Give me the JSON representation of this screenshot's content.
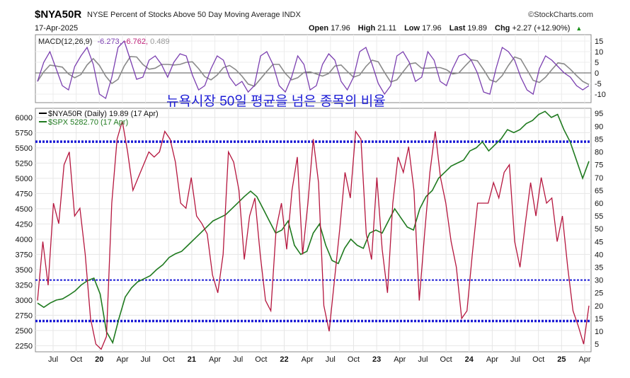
{
  "header": {
    "symbol": "$NYA50R",
    "description": "NYSE Percent of Stocks Above 50 Day Moving Average INDX",
    "brand": "©StockCharts.com",
    "date": "17-Apr-2025",
    "open_label": "Open",
    "open": "17.96",
    "high_label": "High",
    "high": "21.11",
    "low_label": "Low",
    "low": "17.96",
    "last_label": "Last",
    "last": "19.89",
    "chg_label": "Chg",
    "chg": "+2.27 (+12.90%)"
  },
  "macd_panel": {
    "label": "MACD(12,26,9)",
    "val1": "-6.273",
    "val2": "-6.762",
    "val3": "0.489",
    "ticks": [
      "15",
      "10",
      "5",
      "0",
      "-5",
      "-10"
    ]
  },
  "annotation": "뉴욕시장 50일 평균을 넘은 종목의 비율",
  "legend": {
    "nya": "$NYA50R (Daily) 19.89 (17 Apr)",
    "spx": "$SPX 5282.70 (17 Apr)"
  },
  "colors": {
    "nya": "#b5163e",
    "spx": "#1f7a1f",
    "macd": "#7b3fb0",
    "signal": "#8a8a8a",
    "guide": "#1c1cd6"
  },
  "chart_data": {
    "type": "line",
    "x_ticks": [
      "Jul",
      "Oct",
      "20",
      "Apr",
      "Jul",
      "Oct",
      "21",
      "Apr",
      "Jul",
      "Oct",
      "22",
      "Apr",
      "Jul",
      "Oct",
      "23",
      "Apr",
      "Jul",
      "Oct",
      "24",
      "Apr",
      "Jul",
      "Oct",
      "25",
      "Apr"
    ],
    "left_axis_ticks": [
      "6000",
      "5750",
      "5500",
      "5250",
      "5000",
      "4750",
      "4500",
      "4250",
      "4000",
      "3750",
      "3500",
      "3250",
      "3000",
      "2750",
      "2500",
      "2250"
    ],
    "right_axis_ticks": [
      "95",
      "90",
      "85",
      "80",
      "75",
      "70",
      "65",
      "60",
      "55",
      "50",
      "45",
      "40",
      "35",
      "30",
      "25",
      "20",
      "15",
      "10",
      "5"
    ],
    "left_ylim": [
      2150,
      6150
    ],
    "right_ylim": [
      2,
      97
    ],
    "horizontal_lines": [
      84,
      30,
      14
    ],
    "series": [
      {
        "name": "$NYA50R",
        "axis": "right",
        "values": [
          22,
          45,
          28,
          60,
          52,
          75,
          80,
          55,
          58,
          40,
          15,
          5,
          3,
          8,
          60,
          85,
          92,
          80,
          65,
          70,
          75,
          80,
          78,
          80,
          88,
          85,
          76,
          60,
          58,
          70,
          55,
          52,
          48,
          32,
          25,
          40,
          80,
          76,
          65,
          38,
          55,
          62,
          40,
          22,
          18,
          50,
          60,
          42,
          65,
          78,
          40,
          60,
          85,
          68,
          20,
          10,
          30,
          50,
          72,
          62,
          88,
          85,
          48,
          38,
          70,
          42,
          25,
          60,
          78,
          72,
          82,
          65,
          22,
          48,
          72,
          88,
          70,
          60,
          45,
          35,
          15,
          18,
          40,
          60,
          60,
          60,
          68,
          62,
          72,
          75,
          45,
          35,
          52,
          68,
          55,
          70,
          60,
          62,
          45,
          55,
          35,
          18,
          12,
          5,
          20
        ]
      },
      {
        "name": "$SPX",
        "axis": "left",
        "values": [
          2950,
          2880,
          2950,
          3000,
          3020,
          3080,
          3150,
          3250,
          3320,
          3360,
          3100,
          2480,
          2300,
          2700,
          3050,
          3200,
          3300,
          3350,
          3400,
          3500,
          3580,
          3700,
          3760,
          3800,
          3900,
          4000,
          4100,
          4200,
          4300,
          4350,
          4400,
          4500,
          4600,
          4700,
          4790,
          4700,
          4500,
          4300,
          4100,
          4150,
          4300,
          3900,
          3750,
          3800,
          4100,
          4250,
          3900,
          3650,
          3600,
          3850,
          4000,
          3900,
          3850,
          4100,
          4150,
          4100,
          4300,
          4500,
          4350,
          4200,
          4150,
          4500,
          4700,
          4800,
          5000,
          5100,
          5200,
          5250,
          5300,
          5450,
          5500,
          5600,
          5450,
          5550,
          5650,
          5800,
          5750,
          5800,
          5900,
          5950,
          6050,
          6100,
          6000,
          6050,
          5800,
          5600,
          5300,
          5000,
          5280
        ]
      },
      {
        "name": "MACD",
        "panel": "macd",
        "values": [
          -4,
          5,
          10,
          2,
          -6,
          -8,
          3,
          8,
          12,
          4,
          -10,
          -12,
          -2,
          12,
          15,
          6,
          -3,
          -2,
          6,
          8,
          4,
          -2,
          5,
          9,
          8,
          -1,
          -8,
          -6,
          2,
          8,
          6,
          -2,
          -6,
          -4,
          -9,
          -6,
          8,
          10,
          4,
          -6,
          -9,
          -2,
          8,
          4,
          -8,
          -6,
          4,
          9,
          6,
          -4,
          -8,
          -2,
          10,
          12,
          4,
          -5,
          -10,
          -6,
          8,
          10,
          5,
          -4,
          -2,
          10,
          6,
          -4,
          -6,
          2,
          8,
          9,
          6,
          0,
          -9,
          -10,
          2,
          12,
          10,
          6,
          -2,
          -8,
          -10,
          2,
          8,
          6,
          3,
          0,
          -2,
          -6,
          -8,
          -6
        ]
      }
    ]
  }
}
